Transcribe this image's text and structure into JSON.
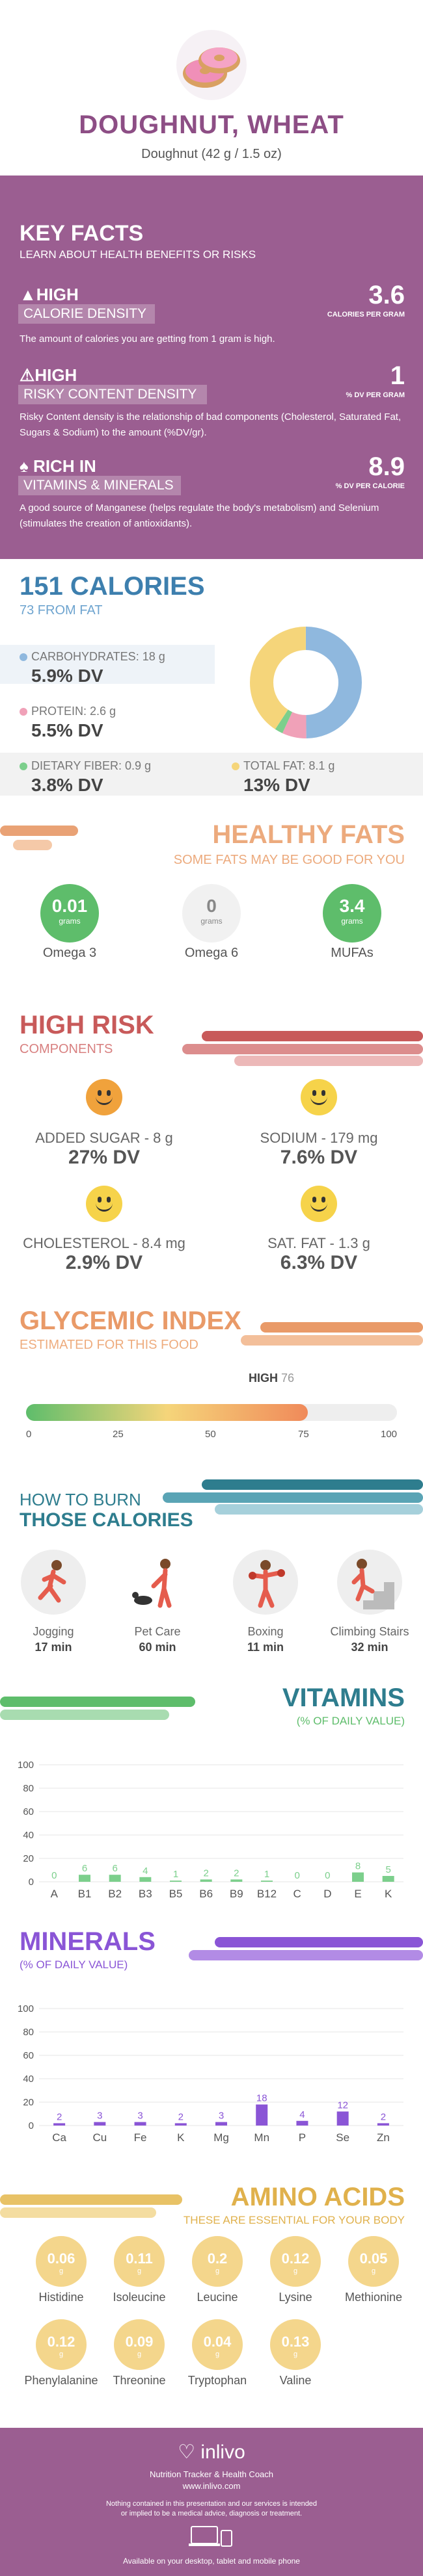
{
  "hero": {
    "title": "DOUGHNUT, WHEAT",
    "subtitle": "Doughnut (42 g / 1.5 oz)"
  },
  "key_facts": {
    "title": "KEY FACTS",
    "subtitle": "LEARN ABOUT HEALTH BENEFITS OR RISKS",
    "items": [
      {
        "level": "HIGH",
        "name": "CALORIE DENSITY",
        "desc": "The amount of calories you are getting from 1 gram is high.",
        "value": "3.6",
        "unit": "CALORIES PER GRAM"
      },
      {
        "level": "HIGH",
        "name": "RISKY CONTENT DENSITY",
        "desc": "Risky Content density is the relationship of bad components (Cholesterol, Saturated Fat, Sugars & Sodium) to the amount (%DV/gr).",
        "value": "1",
        "unit": "% DV PER GRAM"
      },
      {
        "level": "RICH  IN",
        "name": "VITAMINS & MINERALS",
        "desc": "A good source of Manganese (helps regulate the body's metabolism) and Selenium (stimulates the creation of antioxidants).",
        "value": "8.9",
        "unit": "% DV PER CALORIE"
      }
    ]
  },
  "calories": {
    "title": "151 CALORIES",
    "from_fat": "73 FROM FAT",
    "macros": [
      {
        "label": "CARBOHYDRATES: 18 g",
        "dv": "5.9% DV",
        "color": "#8fb8de"
      },
      {
        "label": "PROTEIN: 2.6 g",
        "dv": "5.5% DV",
        "color": "#f0a1b8"
      },
      {
        "label": "DIETARY FIBER: 0.9 g",
        "dv": "3.8% DV",
        "color": "#7ccf8c"
      },
      {
        "label": "TOTAL FAT: 8.1 g",
        "dv": "13% DV",
        "color": "#f5d57a"
      }
    ]
  },
  "healthy_fats": {
    "title": "HEALTHY FATS",
    "subtitle": "SOME FATS MAY BE GOOD FOR YOU",
    "items": [
      {
        "value": "0.01",
        "unit": "grams",
        "name": "Omega 3"
      },
      {
        "value": "0",
        "unit": "grams",
        "name": "Omega 6"
      },
      {
        "value": "3.4",
        "unit": "grams",
        "name": "MUFAs"
      }
    ]
  },
  "high_risk": {
    "title": "HIGH RISK",
    "subtitle": "COMPONENTS",
    "items": [
      {
        "label": "ADDED SUGAR - 8 g",
        "dv": "27% DV"
      },
      {
        "label": "SODIUM - 179 mg",
        "dv": "7.6% DV"
      },
      {
        "label": "CHOLESTEROL - 8.4 mg",
        "dv": "2.9% DV"
      },
      {
        "label": "SAT. FAT - 1.3 g",
        "dv": "6.3% DV"
      }
    ]
  },
  "glycemic": {
    "title": "GLYCEMIC INDEX",
    "subtitle": "ESTIMATED FOR THIS FOOD",
    "level": "HIGH",
    "value": "76",
    "value_num": 76,
    "ticks": [
      "0",
      "25",
      "50",
      "75",
      "100"
    ]
  },
  "burn": {
    "title1": "HOW TO BURN",
    "title2": "THOSE CALORIES",
    "items": [
      {
        "name": "Jogging",
        "min": "17 min"
      },
      {
        "name": "Pet Care",
        "min": "60 min"
      },
      {
        "name": "Boxing",
        "min": "11 min"
      },
      {
        "name": "Climbing Stairs",
        "min": "32 min"
      }
    ]
  },
  "vitamins": {
    "title": "VITAMINS",
    "subtitle": "(% OF DAILY VALUE)",
    "color": "#7ccf8c",
    "yticks": [
      "100",
      "80",
      "60",
      "40",
      "20",
      "0"
    ],
    "categories": [
      "A",
      "B1",
      "B2",
      "B3",
      "B5",
      "B6",
      "B9",
      "B12",
      "C",
      "D",
      "E",
      "K"
    ],
    "values": [
      0,
      6,
      6,
      4,
      1,
      2,
      2,
      1,
      0,
      0,
      8,
      5
    ],
    "labels": [
      "0",
      "6",
      "6",
      "4",
      "1",
      "2",
      "2",
      "1",
      "0",
      "0",
      "8",
      "5"
    ]
  },
  "minerals": {
    "title": "MINERALS",
    "subtitle": "(% OF DAILY VALUE)",
    "color": "#8a55d6",
    "yticks": [
      "100",
      "80",
      "60",
      "40",
      "20",
      "0"
    ],
    "categories": [
      "Ca",
      "Cu",
      "Fe",
      "K",
      "Mg",
      "Mn",
      "P",
      "Se",
      "Zn"
    ],
    "values": [
      2,
      3,
      3,
      2,
      3,
      18,
      4,
      12,
      2
    ],
    "labels": [
      "2",
      "3",
      "3",
      "2",
      "3",
      "18",
      "4",
      "12",
      "2"
    ]
  },
  "amino": {
    "title": "AMINO ACIDS",
    "subtitle": "THESE ARE ESSENTIAL FOR YOUR BODY",
    "items": [
      {
        "value": "0.06",
        "unit": "g",
        "name": "Histidine"
      },
      {
        "value": "0.11",
        "unit": "g",
        "name": "Isoleucine"
      },
      {
        "value": "0.2",
        "unit": "g",
        "name": "Leucine"
      },
      {
        "value": "0.12",
        "unit": "g",
        "name": "Lysine"
      },
      {
        "value": "0.05",
        "unit": "g",
        "name": "Methionine"
      },
      {
        "value": "0.12",
        "unit": "g",
        "name": "Phenylalanine"
      },
      {
        "value": "0.09",
        "unit": "g",
        "name": "Threonine"
      },
      {
        "value": "0.04",
        "unit": "g",
        "name": "Tryptophan"
      },
      {
        "value": "0.13",
        "unit": "g",
        "name": "Valine"
      }
    ]
  },
  "footer": {
    "brand": "inlivo",
    "tagline": "Nutrition Tracker & Health Coach",
    "url": "www.inlivo.com",
    "disclaimer": "Nothing contained in this presentation and our services is intended or implied to be a medical advice, diagnosis or treatment.",
    "available": "Available on your desktop, tablet and mobile phone"
  }
}
